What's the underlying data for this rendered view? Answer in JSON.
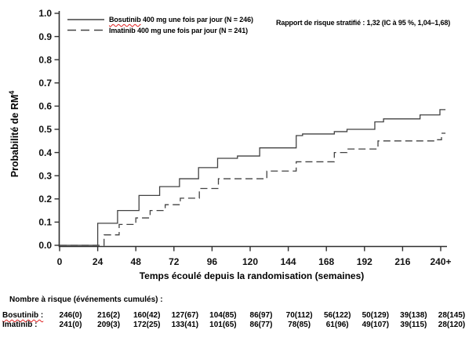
{
  "page": {
    "background": "#ffffff"
  },
  "chart_data": {
    "type": "line",
    "subtype": "kaplan-meier-step",
    "title": "",
    "xlabel": "Temps écoulé depuis la randomisation (semaines)",
    "ylabel": "Probabilité de RM",
    "ylabel_sup": "4",
    "hazard_note": "Rapport de risque stratifié : 1,32 (IC à 95 %, 1,04–1,68)",
    "xlim": [
      0,
      243
    ],
    "ylim": [
      0,
      1
    ],
    "grid": false,
    "legend_position": "top-left-inside",
    "x_tick_values": [
      0,
      24,
      48,
      72,
      96,
      120,
      144,
      168,
      192,
      216,
      240
    ],
    "x_tick_labels": [
      "0",
      "24",
      "48",
      "72",
      "96",
      "120",
      "144",
      "168",
      "192",
      "216",
      "240+"
    ],
    "y_tick_values": [
      0,
      0.1,
      0.2,
      0.3,
      0.4,
      0.5,
      0.6,
      0.7,
      0.8,
      0.9,
      1.0
    ],
    "y_tick_labels": [
      "0.0",
      "0.1",
      "0.2",
      "0.3",
      "0.4",
      "0.5",
      "0.6",
      "0.7",
      "0.8",
      "0.9",
      "1.0"
    ],
    "line_color": "#424242",
    "axis_color": "#2f2f2f",
    "series": [
      {
        "name": "Bosutinib",
        "dose_label": "400 mg une fois par jour (N = 246)",
        "style": "solid",
        "steps": [
          [
            0,
            0
          ],
          [
            24,
            0.095
          ],
          [
            36.5,
            0.15
          ],
          [
            50,
            0.215
          ],
          [
            63,
            0.253
          ],
          [
            75.5,
            0.287
          ],
          [
            87.5,
            0.335
          ],
          [
            99.5,
            0.375
          ],
          [
            112,
            0.385
          ],
          [
            126,
            0.42
          ],
          [
            149,
            0.473
          ],
          [
            153,
            0.48
          ],
          [
            173,
            0.49
          ],
          [
            181,
            0.5
          ],
          [
            198.5,
            0.532
          ],
          [
            204,
            0.545
          ],
          [
            227,
            0.562
          ],
          [
            239.5,
            0.585
          ]
        ]
      },
      {
        "name": "Imatinib",
        "dose_label": "400 mg une fois par jour (N = 241)",
        "style": "dashed",
        "steps": [
          [
            0,
            0
          ],
          [
            28,
            0.045
          ],
          [
            37.5,
            0.09
          ],
          [
            48,
            0.118
          ],
          [
            57,
            0.15
          ],
          [
            66.5,
            0.175
          ],
          [
            76,
            0.203
          ],
          [
            88,
            0.245
          ],
          [
            100,
            0.287
          ],
          [
            130.5,
            0.32
          ],
          [
            149,
            0.36
          ],
          [
            173,
            0.4
          ],
          [
            181,
            0.415
          ],
          [
            200.5,
            0.45
          ],
          [
            237,
            0.455
          ],
          [
            240.5,
            0.483
          ]
        ]
      }
    ],
    "risk_table": {
      "title": "Nombre à risque (événements cumulés) :",
      "rows": [
        {
          "label": "Bosutinib :",
          "values": [
            "246(0)",
            "216(2)",
            "160(42)",
            "127(67)",
            "104(85)",
            "86(97)",
            "70(112)",
            "56(122)",
            "50(129)",
            "39(138)",
            "28(145)"
          ]
        },
        {
          "label": "Imatinib :",
          "values": [
            "241(0)",
            "209(3)",
            "172(25)",
            "133(41)",
            "101(65)",
            "86(77)",
            "78(85)",
            "61(96)",
            "49(107)",
            "39(115)",
            "28(120)"
          ]
        }
      ]
    }
  }
}
